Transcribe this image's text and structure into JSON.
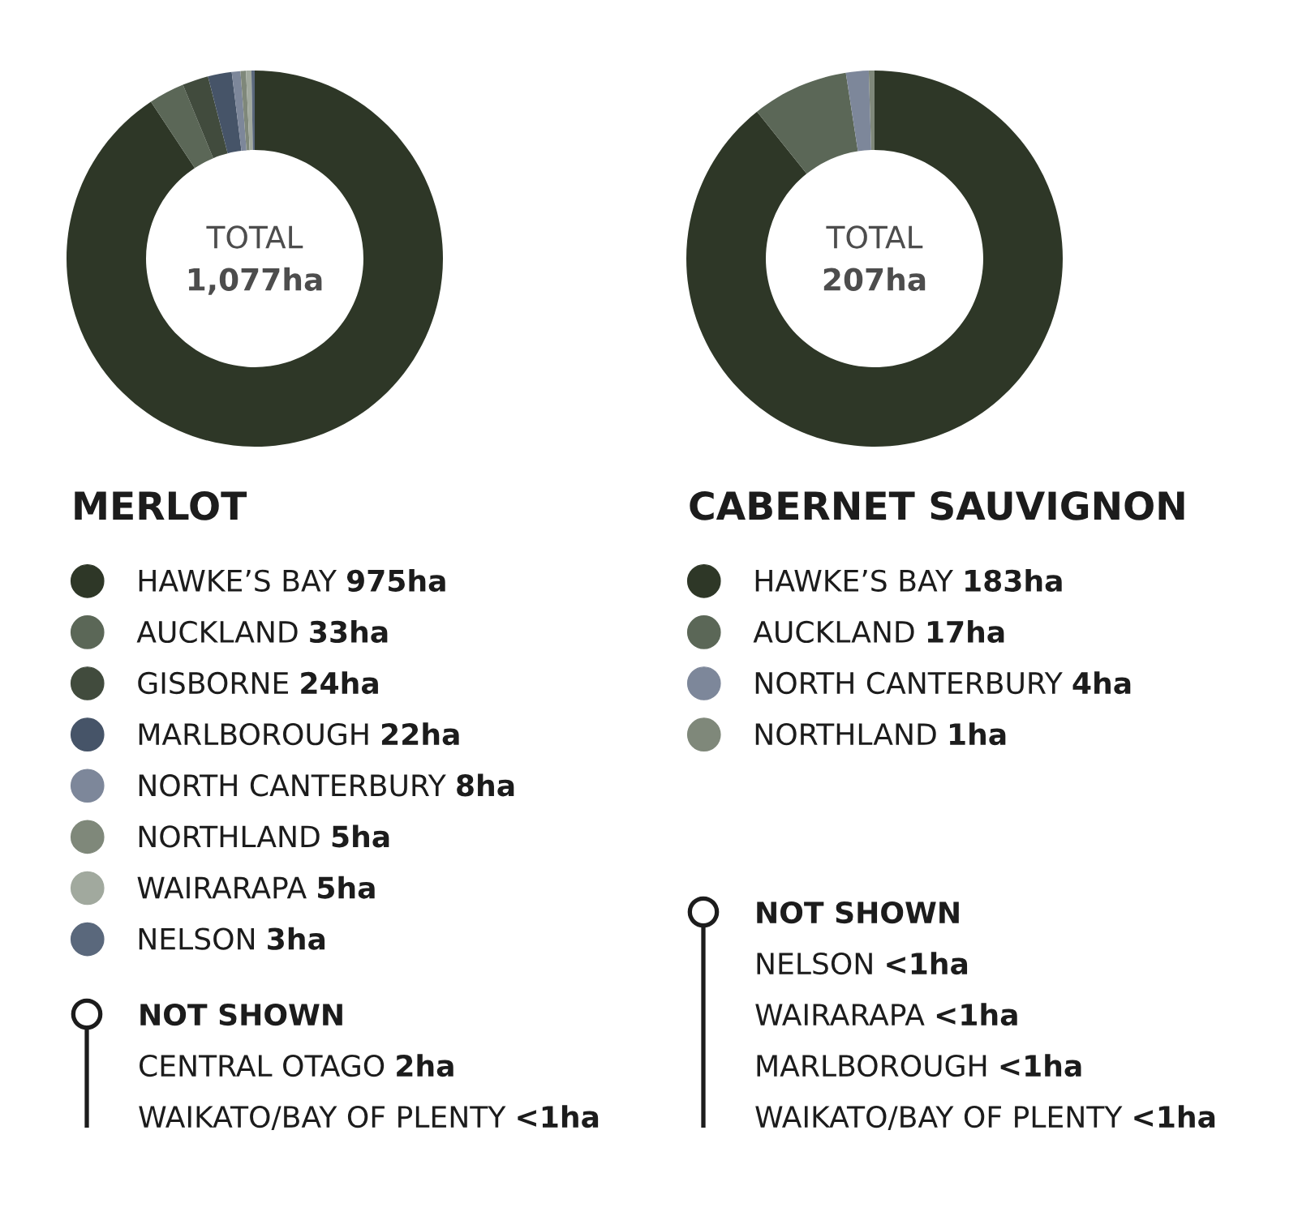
{
  "chart_data": [
    {
      "type": "donut",
      "title": "MERLOT",
      "categories": [
        "HAWKE’S BAY",
        "AUCKLAND",
        "GISBORNE",
        "MARLBOROUGH",
        "NORTH CANTERBURY",
        "NORTHLAND",
        "WAIRARAPA",
        "NELSON"
      ],
      "values": [
        975,
        33,
        24,
        22,
        8,
        5,
        5,
        3
      ],
      "value_labels": [
        "975ha",
        "33ha",
        "24ha",
        "22ha",
        "8ha",
        "5ha",
        "5ha",
        "3ha"
      ],
      "colors": [
        "#2e3727",
        "#5b6757",
        "#414b3d",
        "#465468",
        "#7d879a",
        "#7f887a",
        "#a1a99e",
        "#5a687c"
      ],
      "legend": "bottom",
      "annotations": [
        "TOTAL",
        "1,077ha",
        "NOT SHOWN",
        "CENTRAL OTAGO",
        "2ha",
        "WAIKATO/BAY OF PLENTY",
        "<1ha"
      ]
    },
    {
      "type": "donut",
      "title": "CABERNET SAUVIGNON",
      "categories": [
        "HAWKE’S BAY",
        "AUCKLAND",
        "NORTH CANTERBURY",
        "NORTHLAND"
      ],
      "values": [
        183,
        17,
        4,
        1
      ],
      "value_labels": [
        "183ha",
        "17ha",
        "4ha",
        "1ha"
      ],
      "colors": [
        "#2e3727",
        "#5b6757",
        "#7d879a",
        "#7f887a"
      ],
      "legend": "bottom",
      "annotations": [
        "TOTAL",
        "207ha",
        "NOT SHOWN",
        "NELSON",
        "<1ha",
        "WAIRARAPA",
        "<1ha",
        "MARLBOROUGH",
        "<1ha",
        "WAIKATO/BAY OF PLENTY",
        "<1ha"
      ]
    }
  ]
}
